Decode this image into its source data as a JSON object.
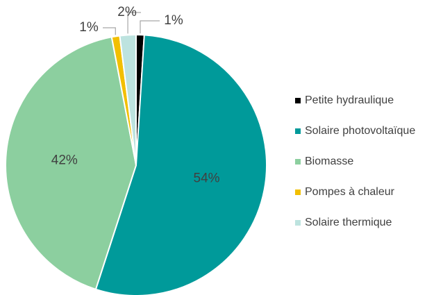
{
  "chart_data": {
    "type": "pie",
    "categories": [
      "Petite hydraulique",
      "Solaire photovoltaïque",
      "Biomasse",
      "Pompes à chaleur",
      "Solaire thermique"
    ],
    "values": [
      1,
      54,
      42,
      1,
      2
    ],
    "value_labels": [
      "1%",
      "54%",
      "42%",
      "1%",
      "2%"
    ],
    "colors": [
      "#000000",
      "#009a9a",
      "#8ccf9f",
      "#f2bf00",
      "#bde3df"
    ],
    "legend": "right"
  }
}
